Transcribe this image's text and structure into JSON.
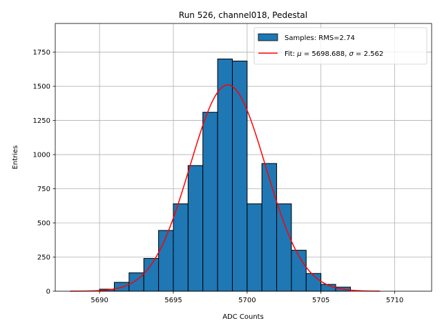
{
  "chart_data": {
    "type": "bar",
    "title": "Run 526, channel018, Pedestal",
    "xlabel": "ADC Counts",
    "ylabel": "Entries",
    "xlim": [
      5687,
      5712.5
    ],
    "ylim": [
      0,
      1960
    ],
    "xticks": [
      5690,
      5695,
      5700,
      5705,
      5710
    ],
    "yticks": [
      0,
      250,
      500,
      750,
      1000,
      1250,
      1500,
      1750
    ],
    "grid": true,
    "legend": {
      "placement": "top-right"
    },
    "histogram": {
      "name": "Samples: RMS=2.74",
      "color": "#1f77b4",
      "bin_edges": [
        5688,
        5689,
        5690,
        5691,
        5692,
        5693,
        5694,
        5695,
        5696,
        5697,
        5698,
        5699,
        5700,
        5701,
        5702,
        5703,
        5704,
        5705,
        5706,
        5707,
        5708,
        5709,
        5710,
        5711
      ],
      "values": [
        0,
        0,
        15,
        65,
        135,
        240,
        445,
        640,
        920,
        1310,
        1700,
        1685,
        640,
        935,
        640,
        300,
        130,
        50,
        30,
        0,
        0,
        0,
        0
      ]
    },
    "fit": {
      "name_prefix": "Fit: ",
      "mu_value": "5698.688",
      "sigma_value": "2.562",
      "color": "#ff0000",
      "mu": 5698.688,
      "sigma": 2.562,
      "amplitude": 1510,
      "x_range": [
        5688,
        5709
      ]
    }
  }
}
